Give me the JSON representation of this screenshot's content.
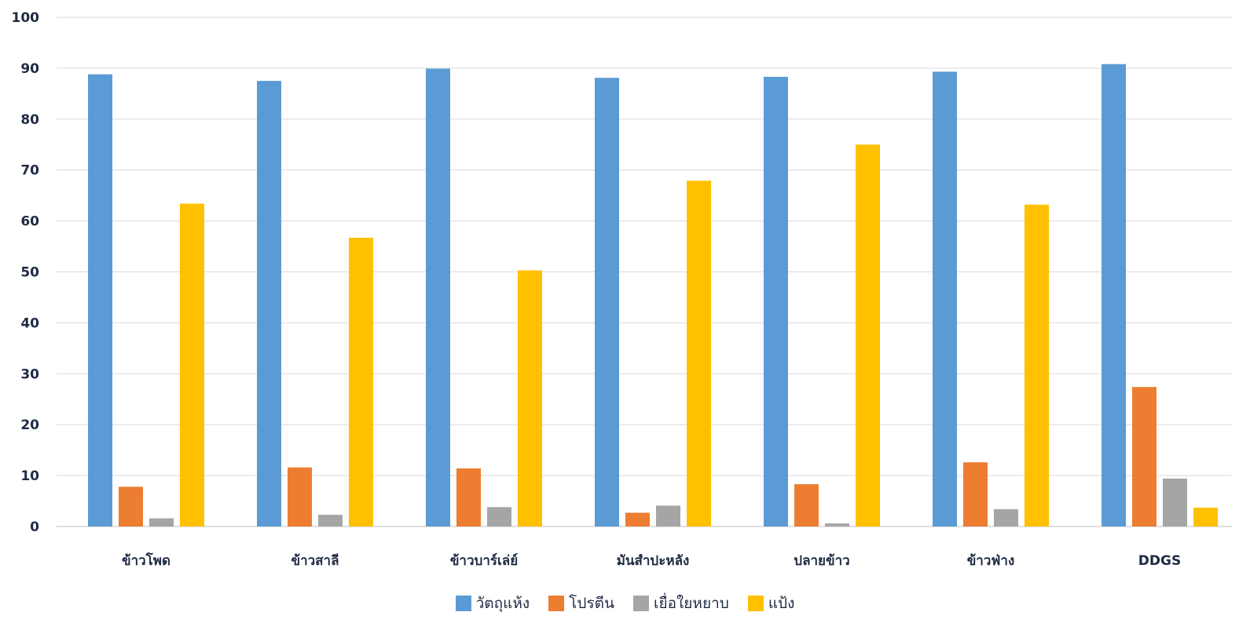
{
  "chart_data": {
    "type": "bar",
    "title": "",
    "xlabel": "",
    "ylabel": "",
    "ylim": [
      0,
      100
    ],
    "yticks": [
      0,
      10,
      20,
      30,
      40,
      50,
      60,
      70,
      80,
      90,
      100
    ],
    "grid": "horizontal",
    "legend_position": "bottom",
    "categories": [
      "ข้าวโพด",
      "ข้าวสาลี",
      "ข้าวบาร์เล่ย์",
      "มันสำปะหลัง",
      "ปลายข้าว",
      "ข้าวฟ่าง",
      "DDGS"
    ],
    "series": [
      {
        "name": "วัตถุแห้ง",
        "color": "#5b9bd5",
        "values": [
          88.8,
          87.5,
          89.9,
          88.1,
          88.3,
          89.3,
          90.8
        ]
      },
      {
        "name": "โปรตีน",
        "color": "#ed7d31",
        "values": [
          7.8,
          11.6,
          11.4,
          2.7,
          8.3,
          12.6,
          27.4
        ]
      },
      {
        "name": "เยื่อใยหยาบ",
        "color": "#a5a5a5",
        "values": [
          1.6,
          2.3,
          3.8,
          4.1,
          0.6,
          3.4,
          9.4
        ]
      },
      {
        "name": "แป้ง",
        "color": "#ffc000",
        "values": [
          63.4,
          56.7,
          50.3,
          67.9,
          75.0,
          63.2,
          3.7
        ]
      }
    ]
  }
}
